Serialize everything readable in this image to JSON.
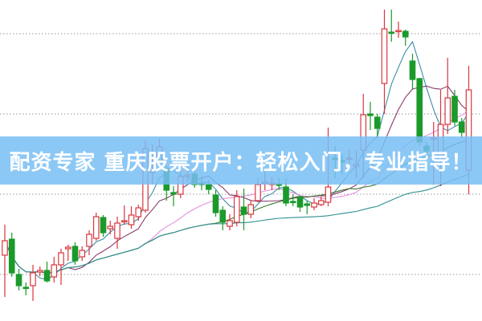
{
  "banner": {
    "title": "配资专家 重庆股票开户：轻松入门，专业指导！"
  },
  "chart_data": {
    "type": "candlestick",
    "title": "",
    "xlabel": "",
    "ylabel": "",
    "grid": "horizontal dotted",
    "gridlines": [
      1,
      2,
      3,
      4
    ],
    "ylim": [
      0.42,
      4.42
    ],
    "colors": {
      "up": "#d9363e",
      "down": "#1a9a2a",
      "grid": "#999999",
      "banner": "#78bef5",
      "ma": [
        "#3b8ea5",
        "#8b3a6b",
        "#e58fe0",
        "#3c7a2f",
        "#2f9090"
      ]
    },
    "moving_averages": [
      5,
      10,
      20,
      30,
      60
    ],
    "candles": [
      [
        1.24,
        1.42,
        1.62,
        0.72
      ],
      [
        1.44,
        1.02,
        1.52,
        0.97
      ],
      [
        1.0,
        0.86,
        1.07,
        0.8
      ],
      [
        0.84,
        0.83,
        0.9,
        0.74
      ],
      [
        0.86,
        1.02,
        1.12,
        0.67
      ],
      [
        1.03,
        1.05,
        1.1,
        0.98
      ],
      [
        1.05,
        0.92,
        1.16,
        0.9
      ],
      [
        0.97,
        1.12,
        1.22,
        0.9
      ],
      [
        1.12,
        1.27,
        1.32,
        0.87
      ],
      [
        1.32,
        1.34,
        1.37,
        1.17
      ],
      [
        1.35,
        1.17,
        1.4,
        1.12
      ],
      [
        1.22,
        1.3,
        1.35,
        1.17
      ],
      [
        1.35,
        1.5,
        1.55,
        1.24
      ],
      [
        1.45,
        1.72,
        1.77,
        1.42
      ],
      [
        1.71,
        1.52,
        1.74,
        1.47
      ],
      [
        1.57,
        1.6,
        1.67,
        1.5
      ],
      [
        1.45,
        1.64,
        1.72,
        1.32
      ],
      [
        1.66,
        1.67,
        1.86,
        1.62
      ],
      [
        1.62,
        1.74,
        1.85,
        1.57
      ],
      [
        1.72,
        1.83,
        1.87,
        1.67
      ],
      [
        1.8,
        2.57,
        2.67,
        1.77
      ],
      [
        2.27,
        2.29,
        2.62,
        2.12
      ],
      [
        2.42,
        2.59,
        2.69,
        2.35
      ],
      [
        2.32,
        2.05,
        2.35,
        1.92
      ],
      [
        2.02,
        2.0,
        2.1,
        1.85
      ],
      [
        2.0,
        2.22,
        2.3,
        1.95
      ],
      [
        2.22,
        2.24,
        2.35,
        2.15
      ],
      [
        2.25,
        2.12,
        2.3,
        2.08
      ],
      [
        2.14,
        2.12,
        2.22,
        2.05
      ],
      [
        2.12,
        2.06,
        2.18,
        2.0
      ],
      [
        1.99,
        1.77,
        2.05,
        1.72
      ],
      [
        1.8,
        1.65,
        1.85,
        1.55
      ],
      [
        1.6,
        1.67,
        1.75,
        1.55
      ],
      [
        1.65,
        1.97,
        2.05,
        1.6
      ],
      [
        1.84,
        1.75,
        2.07,
        1.55
      ],
      [
        1.75,
        1.87,
        1.92,
        1.7
      ],
      [
        1.92,
        2.12,
        2.2,
        1.9
      ],
      [
        2.13,
        2.15,
        2.28,
        2.05
      ],
      [
        2.12,
        2.14,
        2.22,
        2.05
      ],
      [
        2.13,
        2.11,
        2.2,
        2.05
      ],
      [
        2.09,
        1.89,
        2.2,
        1.85
      ],
      [
        1.91,
        1.9,
        2.0,
        1.85
      ],
      [
        1.97,
        1.84,
        1.98,
        1.78
      ],
      [
        1.88,
        1.86,
        1.92,
        1.75
      ],
      [
        1.84,
        1.89,
        1.95,
        1.8
      ],
      [
        1.87,
        1.92,
        1.97,
        1.85
      ],
      [
        1.9,
        2.09,
        2.83,
        1.85
      ],
      [
        2.45,
        2.43,
        2.6,
        2.2
      ],
      [
        2.42,
        2.4,
        2.5,
        2.25
      ],
      [
        2.44,
        2.45,
        2.55,
        2.3
      ],
      [
        2.35,
        2.37,
        2.55,
        2.2
      ],
      [
        2.55,
        2.99,
        3.25,
        2.2
      ],
      [
        3.0,
        2.98,
        3.15,
        2.8
      ],
      [
        2.96,
        2.82,
        3.0,
        2.7
      ],
      [
        3.38,
        4.06,
        4.3,
        3.0
      ],
      [
        4.02,
        4.01,
        4.3,
        3.9
      ],
      [
        4.03,
        4.04,
        4.15,
        3.95
      ],
      [
        4.03,
        3.96,
        4.05,
        3.85
      ],
      [
        3.66,
        3.43,
        3.75,
        3.3
      ],
      [
        3.44,
        2.65,
        3.45,
        2.6
      ],
      [
        2.6,
        2.54,
        2.65,
        2.45
      ],
      [
        2.69,
        2.7,
        2.9,
        2.12
      ],
      [
        2.42,
        2.87,
        3.3,
        2.1
      ],
      [
        2.87,
        3.2,
        3.7,
        2.75
      ],
      [
        3.22,
        2.9,
        3.3,
        2.85
      ],
      [
        2.9,
        2.77,
        2.95,
        2.7
      ],
      [
        2.3,
        3.3,
        3.6,
        2.0
      ]
    ]
  }
}
